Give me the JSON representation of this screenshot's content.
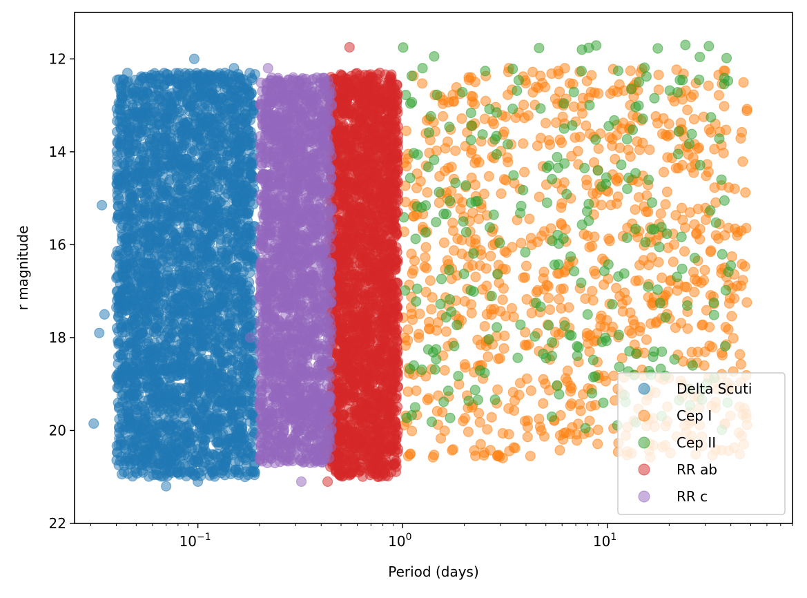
{
  "chart_data": {
    "type": "scatter",
    "title": "",
    "xlabel": "Period (days)",
    "ylabel": "r magnitude",
    "x_scale": "log",
    "xlim": [
      0.025,
      80
    ],
    "ylim": [
      22,
      11.0
    ],
    "y_inverted": true,
    "x_ticks": [
      {
        "value": 0.1,
        "label": "10",
        "exp": "−1"
      },
      {
        "value": 1,
        "label": "10",
        "exp": "0"
      },
      {
        "value": 10,
        "label": "10",
        "exp": "1"
      }
    ],
    "y_ticks": [
      12,
      14,
      16,
      18,
      20,
      22
    ],
    "grid": false,
    "legend_position": "lower-right",
    "marker_alpha": 0.5,
    "series": [
      {
        "name": "Delta Scuti",
        "color": "#1f77b4",
        "period_range": [
          0.04,
          0.19
        ],
        "magnitude_range": [
          12.3,
          21.0
        ],
        "points": [
          [
            0.031,
            19.85
          ],
          [
            0.034,
            15.15
          ],
          [
            0.096,
            12.0
          ],
          [
            0.045,
            16.5
          ],
          [
            0.041,
            14.6
          ],
          [
            0.035,
            17.5
          ],
          [
            0.033,
            17.9
          ],
          [
            0.07,
            21.2
          ],
          [
            0.1,
            21.1
          ],
          [
            0.19,
            20.9
          ],
          [
            0.15,
            12.2
          ]
        ]
      },
      {
        "name": "Cep I",
        "color": "#ff7f0e",
        "period_range": [
          1.0,
          48
        ],
        "magnitude_range": [
          12.2,
          20.6
        ],
        "points": [
          [
            3.3,
            12.2
          ],
          [
            2.9,
            20.55
          ],
          [
            4.2,
            20.55
          ],
          [
            45,
            15.7
          ],
          [
            38,
            18.15
          ],
          [
            12.5,
            20.45
          ],
          [
            2.1,
            12.4
          ],
          [
            1.3,
            14.3
          ]
        ]
      },
      {
        "name": "Cep II",
        "color": "#2ca02c",
        "period_range": [
          1.0,
          40
        ],
        "magnitude_range": [
          11.7,
          20.0
        ],
        "points": [
          [
            24,
            11.7
          ],
          [
            1.25,
            12.2
          ],
          [
            28,
            12.45
          ],
          [
            1.15,
            19.5
          ],
          [
            33,
            17.25
          ],
          [
            40,
            16.45
          ],
          [
            36,
            14.6
          ],
          [
            7.8,
            19.95
          ]
        ]
      },
      {
        "name": "RR ab",
        "color": "#d62728",
        "period_range": [
          0.44,
          0.95
        ],
        "magnitude_range": [
          12.3,
          21.0
        ],
        "points": [
          [
            0.55,
            11.75
          ],
          [
            0.43,
            21.1
          ],
          [
            0.62,
            16.4
          ]
        ]
      },
      {
        "name": "RR c",
        "color": "#9467bd",
        "period_range": [
          0.2,
          0.45
        ],
        "magnitude_range": [
          12.4,
          20.7
        ],
        "points": [
          [
            0.22,
            12.2
          ],
          [
            0.32,
            21.1
          ],
          [
            0.18,
            18.0
          ]
        ]
      }
    ]
  }
}
